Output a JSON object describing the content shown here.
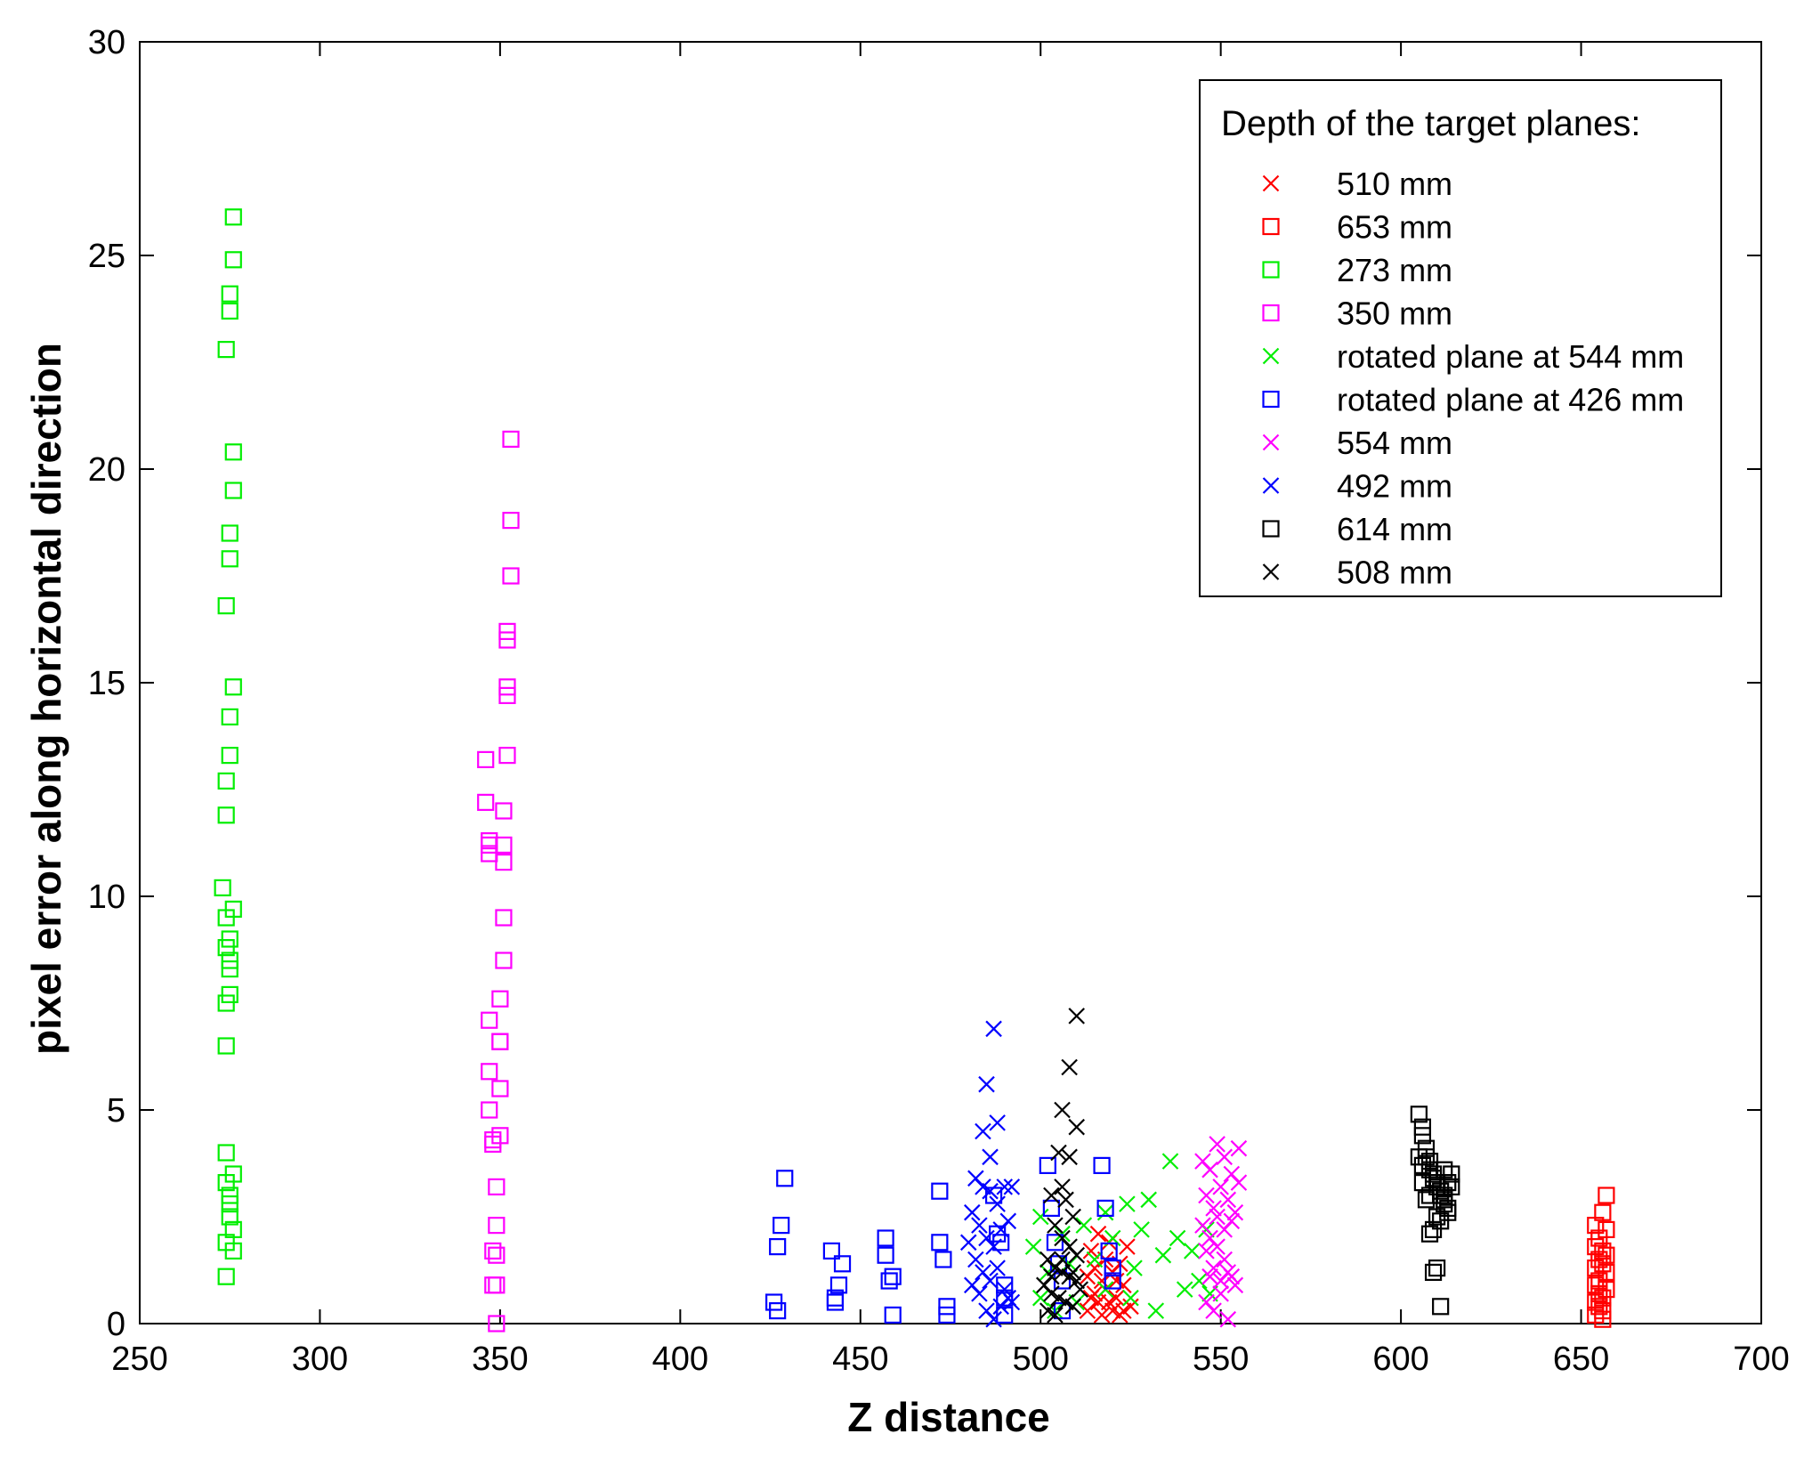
{
  "chart_data": {
    "type": "scatter",
    "title": "",
    "xlabel": "Z distance",
    "ylabel": "pixel error along horizontal direction",
    "xlim": [
      250,
      700
    ],
    "ylim": [
      0,
      30
    ],
    "xticks": [
      250,
      300,
      350,
      400,
      450,
      500,
      550,
      600,
      650,
      700
    ],
    "yticks": [
      0,
      5,
      10,
      15,
      20,
      25,
      30
    ],
    "grid": false,
    "legend": {
      "title": "Depth of the target planes:",
      "position": "top-right"
    },
    "series": [
      {
        "name": "510 mm",
        "marker": "x",
        "color": "#ff0000",
        "points": [
          [
            513,
            1.1
          ],
          [
            514,
            1.7
          ],
          [
            515,
            1.3
          ],
          [
            516,
            0.5
          ],
          [
            516,
            2.1
          ],
          [
            517,
            0.2
          ],
          [
            518,
            1.5
          ],
          [
            518,
            0.8
          ],
          [
            519,
            1.9
          ],
          [
            520,
            0.3
          ],
          [
            520,
            1.2
          ],
          [
            521,
            0.6
          ],
          [
            522,
            1.4
          ],
          [
            522,
            0.2
          ],
          [
            523,
            0.9
          ],
          [
            524,
            1.8
          ],
          [
            525,
            0.4
          ],
          [
            513,
            0.3
          ],
          [
            515,
            0.7
          ],
          [
            517,
            1.0
          ],
          [
            519,
            0.5
          ],
          [
            521,
            1.0
          ],
          [
            523,
            0.3
          ],
          [
            514,
            0.6
          ]
        ]
      },
      {
        "name": "653 mm",
        "marker": "square",
        "color": "#ff0000",
        "points": [
          [
            657,
            3.0
          ],
          [
            656,
            2.6
          ],
          [
            654,
            2.3
          ],
          [
            657,
            2.2
          ],
          [
            655,
            2.0
          ],
          [
            654,
            1.8
          ],
          [
            656,
            1.7
          ],
          [
            657,
            1.6
          ],
          [
            655,
            1.5
          ],
          [
            656,
            1.4
          ],
          [
            654,
            1.3
          ],
          [
            657,
            1.2
          ],
          [
            655,
            1.0
          ],
          [
            654,
            0.9
          ],
          [
            657,
            0.8
          ],
          [
            655,
            0.7
          ],
          [
            656,
            0.6
          ],
          [
            654,
            0.5
          ],
          [
            655,
            0.4
          ],
          [
            656,
            0.3
          ],
          [
            654,
            0.2
          ],
          [
            656,
            0.1
          ]
        ]
      },
      {
        "name": "273 mm",
        "marker": "square",
        "color": "#00ee00",
        "points": [
          [
            276,
            25.9
          ],
          [
            276,
            24.9
          ],
          [
            275,
            24.1
          ],
          [
            275,
            23.7
          ],
          [
            274,
            22.8
          ],
          [
            276,
            20.4
          ],
          [
            276,
            19.5
          ],
          [
            275,
            18.5
          ],
          [
            275,
            17.9
          ],
          [
            274,
            16.8
          ],
          [
            276,
            14.9
          ],
          [
            275,
            14.2
          ],
          [
            275,
            13.3
          ],
          [
            274,
            12.7
          ],
          [
            274,
            11.9
          ],
          [
            273,
            10.2
          ],
          [
            276,
            9.7
          ],
          [
            274,
            9.5
          ],
          [
            275,
            9.0
          ],
          [
            274,
            8.8
          ],
          [
            275,
            8.5
          ],
          [
            275,
            8.3
          ],
          [
            275,
            7.7
          ],
          [
            274,
            7.5
          ],
          [
            274,
            6.5
          ],
          [
            274,
            4.0
          ],
          [
            276,
            3.5
          ],
          [
            274,
            3.3
          ],
          [
            275,
            3.0
          ],
          [
            275,
            2.8
          ],
          [
            275,
            2.5
          ],
          [
            276,
            2.2
          ],
          [
            274,
            1.9
          ],
          [
            276,
            1.7
          ],
          [
            274,
            1.1
          ]
        ]
      },
      {
        "name": "350 mm",
        "marker": "square",
        "color": "#ff00ff",
        "points": [
          [
            353,
            20.7
          ],
          [
            353,
            18.8
          ],
          [
            353,
            17.5
          ],
          [
            352,
            16.2
          ],
          [
            352,
            16.0
          ],
          [
            352,
            14.9
          ],
          [
            352,
            14.7
          ],
          [
            346,
            13.2
          ],
          [
            352,
            13.3
          ],
          [
            346,
            12.2
          ],
          [
            351,
            12.0
          ],
          [
            347,
            11.3
          ],
          [
            347,
            11.2
          ],
          [
            351,
            11.2
          ],
          [
            347,
            11.0
          ],
          [
            351,
            10.8
          ],
          [
            351,
            9.5
          ],
          [
            351,
            8.5
          ],
          [
            350,
            7.6
          ],
          [
            347,
            7.1
          ],
          [
            350,
            6.6
          ],
          [
            350,
            6.6
          ],
          [
            347,
            5.9
          ],
          [
            350,
            5.5
          ],
          [
            347,
            5.0
          ],
          [
            350,
            4.4
          ],
          [
            348,
            4.3
          ],
          [
            348,
            4.2
          ],
          [
            349,
            3.2
          ],
          [
            349,
            2.3
          ],
          [
            348,
            1.7
          ],
          [
            349,
            1.6
          ],
          [
            348,
            0.9
          ],
          [
            349,
            0.9
          ],
          [
            349,
            0.0
          ]
        ]
      },
      {
        "name": "rotated plane at 544 mm",
        "marker": "x",
        "color": "#00ee00",
        "points": [
          [
            536,
            3.8
          ],
          [
            530,
            2.9
          ],
          [
            524,
            2.8
          ],
          [
            518,
            2.6
          ],
          [
            512,
            2.3
          ],
          [
            506,
            2.1
          ],
          [
            500,
            2.5
          ],
          [
            498,
            1.8
          ],
          [
            520,
            2.0
          ],
          [
            528,
            2.2
          ],
          [
            538,
            2.0
          ],
          [
            546,
            2.2
          ],
          [
            542,
            1.7
          ],
          [
            534,
            1.6
          ],
          [
            526,
            1.3
          ],
          [
            515,
            1.5
          ],
          [
            508,
            1.4
          ],
          [
            502,
            1.2
          ],
          [
            500,
            0.6
          ],
          [
            504,
            0.3
          ],
          [
            510,
            0.5
          ],
          [
            518,
            0.8
          ],
          [
            525,
            0.6
          ],
          [
            532,
            0.3
          ],
          [
            540,
            0.8
          ],
          [
            544,
            1.0
          ],
          [
            547,
            0.7
          ]
        ]
      },
      {
        "name": "rotated plane at 426 mm",
        "marker": "square",
        "color": "#0000ff",
        "points": [
          [
            429,
            3.4
          ],
          [
            428,
            2.3
          ],
          [
            427,
            1.8
          ],
          [
            426,
            0.5
          ],
          [
            427,
            0.3
          ],
          [
            442,
            1.7
          ],
          [
            443,
            0.6
          ],
          [
            444,
            0.9
          ],
          [
            445,
            1.4
          ],
          [
            443,
            0.5
          ],
          [
            457,
            2.0
          ],
          [
            457,
            1.6
          ],
          [
            458,
            1.0
          ],
          [
            459,
            1.1
          ],
          [
            459,
            0.2
          ],
          [
            472,
            3.1
          ],
          [
            472,
            1.9
          ],
          [
            473,
            1.5
          ],
          [
            474,
            0.4
          ],
          [
            474,
            0.2
          ],
          [
            487,
            3.0
          ],
          [
            488,
            2.1
          ],
          [
            489,
            1.9
          ],
          [
            490,
            0.9
          ],
          [
            490,
            0.6
          ],
          [
            490,
            0.2
          ],
          [
            502,
            3.7
          ],
          [
            503,
            2.7
          ],
          [
            504,
            1.9
          ],
          [
            505,
            1.4
          ],
          [
            506,
            1.0
          ],
          [
            506,
            0.3
          ],
          [
            517,
            3.7
          ],
          [
            518,
            2.7
          ],
          [
            519,
            1.7
          ],
          [
            520,
            1.3
          ],
          [
            520,
            1.0
          ]
        ]
      },
      {
        "name": "554 mm",
        "marker": "x",
        "color": "#ff00ff",
        "points": [
          [
            547,
            3.6
          ],
          [
            549,
            4.2
          ],
          [
            551,
            3.9
          ],
          [
            553,
            3.5
          ],
          [
            555,
            4.1
          ],
          [
            546,
            3.0
          ],
          [
            548,
            2.7
          ],
          [
            550,
            3.2
          ],
          [
            552,
            2.9
          ],
          [
            554,
            2.6
          ],
          [
            545,
            2.3
          ],
          [
            547,
            2.0
          ],
          [
            549,
            2.5
          ],
          [
            551,
            2.2
          ],
          [
            553,
            2.4
          ],
          [
            546,
            1.7
          ],
          [
            548,
            1.3
          ],
          [
            550,
            1.0
          ],
          [
            552,
            1.2
          ],
          [
            554,
            0.9
          ],
          [
            546,
            0.5
          ],
          [
            548,
            0.3
          ],
          [
            550,
            0.7
          ],
          [
            552,
            0.1
          ],
          [
            549,
            1.8
          ],
          [
            551,
            1.5
          ],
          [
            547,
            1.1
          ],
          [
            553,
            1.1
          ],
          [
            545,
            3.8
          ],
          [
            555,
            3.3
          ]
        ]
      },
      {
        "name": "492 mm",
        "marker": "x",
        "color": "#0000ff",
        "points": [
          [
            487,
            6.9
          ],
          [
            485,
            5.6
          ],
          [
            488,
            4.7
          ],
          [
            484,
            4.5
          ],
          [
            486,
            3.9
          ],
          [
            482,
            3.4
          ],
          [
            484,
            3.2
          ],
          [
            486,
            3.1
          ],
          [
            488,
            2.8
          ],
          [
            490,
            3.2
          ],
          [
            492,
            3.2
          ],
          [
            481,
            2.6
          ],
          [
            483,
            2.3
          ],
          [
            485,
            2.0
          ],
          [
            487,
            1.8
          ],
          [
            489,
            2.2
          ],
          [
            491,
            2.4
          ],
          [
            480,
            1.9
          ],
          [
            482,
            1.5
          ],
          [
            484,
            1.2
          ],
          [
            486,
            1.0
          ],
          [
            488,
            1.3
          ],
          [
            490,
            0.8
          ],
          [
            492,
            0.5
          ],
          [
            481,
            0.9
          ],
          [
            483,
            0.7
          ],
          [
            485,
            0.3
          ],
          [
            487,
            0.1
          ],
          [
            489,
            0.4
          ],
          [
            491,
            0.6
          ]
        ]
      },
      {
        "name": "614 mm",
        "marker": "square",
        "color": "#000000",
        "points": [
          [
            605,
            4.9
          ],
          [
            606,
            4.6
          ],
          [
            606,
            4.4
          ],
          [
            607,
            4.1
          ],
          [
            607,
            3.9
          ],
          [
            608,
            3.8
          ],
          [
            608,
            3.6
          ],
          [
            609,
            3.5
          ],
          [
            609,
            3.4
          ],
          [
            610,
            3.3
          ],
          [
            610,
            3.2
          ],
          [
            611,
            3.1
          ],
          [
            611,
            3.0
          ],
          [
            612,
            2.9
          ],
          [
            612,
            2.8
          ],
          [
            613,
            2.7
          ],
          [
            613,
            2.6
          ],
          [
            614,
            3.2
          ],
          [
            614,
            3.5
          ],
          [
            612,
            3.6
          ],
          [
            610,
            2.5
          ],
          [
            611,
            2.4
          ],
          [
            609,
            2.2
          ],
          [
            608,
            2.1
          ],
          [
            610,
            1.3
          ],
          [
            609,
            1.2
          ],
          [
            611,
            0.4
          ],
          [
            606,
            3.3
          ],
          [
            607,
            2.9
          ],
          [
            608,
            3.0
          ],
          [
            605,
            3.9
          ],
          [
            606,
            3.7
          ],
          [
            613,
            3.3
          ],
          [
            612,
            3.0
          ]
        ]
      },
      {
        "name": "508 mm",
        "marker": "x",
        "color": "#000000",
        "points": [
          [
            510,
            7.2
          ],
          [
            508,
            6.0
          ],
          [
            506,
            5.0
          ],
          [
            510,
            4.6
          ],
          [
            505,
            4.0
          ],
          [
            508,
            3.9
          ],
          [
            506,
            3.2
          ],
          [
            503,
            3.0
          ],
          [
            507,
            2.9
          ],
          [
            509,
            2.5
          ],
          [
            504,
            2.3
          ],
          [
            506,
            2.0
          ],
          [
            508,
            1.8
          ],
          [
            510,
            1.6
          ],
          [
            502,
            1.5
          ],
          [
            504,
            1.3
          ],
          [
            506,
            1.2
          ],
          [
            508,
            1.1
          ],
          [
            510,
            1.0
          ],
          [
            501,
            0.9
          ],
          [
            503,
            0.7
          ],
          [
            505,
            0.6
          ],
          [
            507,
            0.5
          ],
          [
            509,
            0.4
          ],
          [
            502,
            0.3
          ],
          [
            504,
            0.2
          ],
          [
            506,
            1.5
          ],
          [
            509,
            1.2
          ],
          [
            511,
            0.8
          ],
          [
            503,
            1.1
          ]
        ]
      }
    ]
  }
}
